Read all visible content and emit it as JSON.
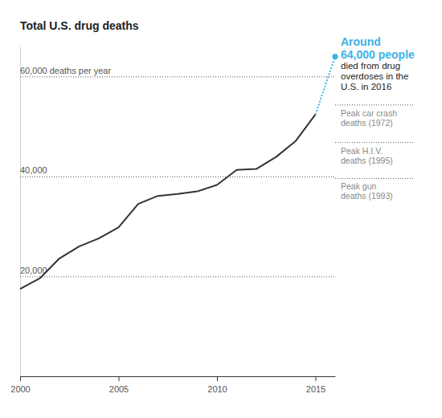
{
  "chart_data": {
    "type": "line",
    "title": "Total U.S. drug deaths",
    "x": [
      2000,
      2001,
      2002,
      2003,
      2004,
      2005,
      2006,
      2007,
      2008,
      2009,
      2010,
      2011,
      2012,
      2013,
      2014,
      2015,
      2016
    ],
    "series": [
      {
        "color": "#333333",
        "line_style": "solid",
        "values": [
          17500,
          19600,
          23600,
          26000,
          27600,
          29800,
          34500,
          36100,
          36500,
          37000,
          38300,
          41300,
          41500,
          43900,
          47100,
          52400,
          null
        ]
      },
      {
        "color": "#3bb3e6",
        "line_style": "dotted",
        "marker": "circle",
        "values": [
          null,
          null,
          null,
          null,
          null,
          null,
          null,
          null,
          null,
          null,
          null,
          null,
          null,
          null,
          null,
          52400,
          64000
        ]
      }
    ],
    "xlim": [
      2000,
      2016
    ],
    "xticks": [
      2000,
      2005,
      2010,
      2015
    ],
    "ylim": [
      0,
      66000
    ],
    "yticks": [
      {
        "value": 20000,
        "label": "20,000"
      },
      {
        "value": 40000,
        "label": "40,000"
      },
      {
        "value": 60000,
        "label": "60,000 deaths per year"
      }
    ],
    "grid": true,
    "annotation": {
      "x": 2016,
      "y": 64000,
      "color": "#3bb3e6",
      "highlight": [
        "Around",
        "64,000 people"
      ],
      "text": [
        "died from drug",
        "overdoses in the",
        "U.S. in 2016"
      ]
    },
    "reference_lines": [
      {
        "value": 54300,
        "label": [
          "Peak car crash",
          "deaths (1972)"
        ]
      },
      {
        "value": 46800,
        "label": [
          "Peak H.I.V.",
          "deaths (1995)"
        ]
      },
      {
        "value": 39600,
        "label": [
          "Peak gun",
          "deaths (1993)"
        ]
      }
    ]
  }
}
